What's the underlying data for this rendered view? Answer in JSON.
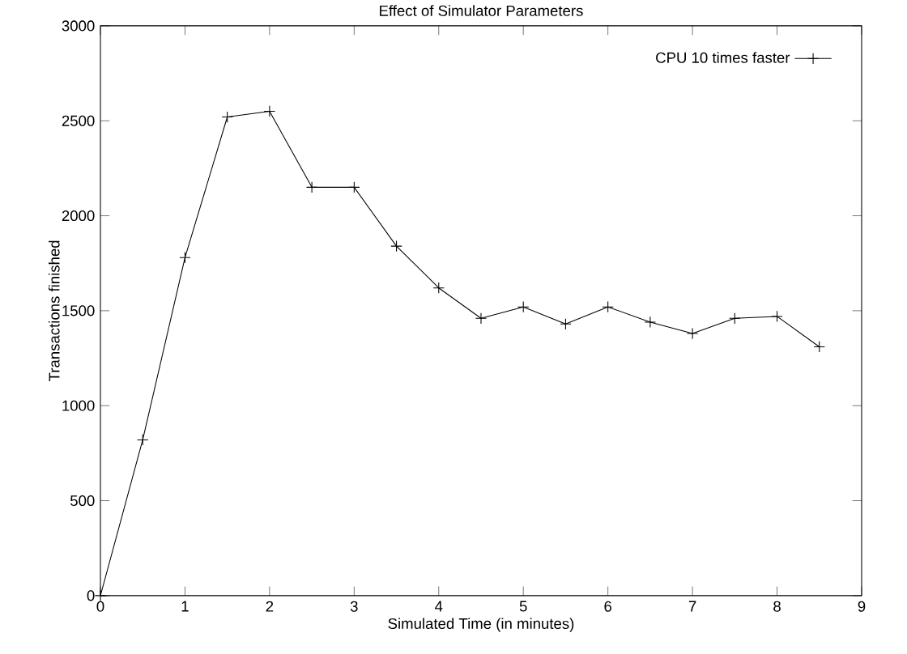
{
  "chart_data": {
    "type": "line",
    "title": "Effect of Simulator Parameters",
    "xlabel": "Simulated Time (in minutes)",
    "ylabel": "Transactions finished",
    "x": [
      0,
      0.5,
      1,
      1.5,
      2,
      2.5,
      3,
      3.5,
      4,
      4.5,
      5,
      5.5,
      6,
      6.5,
      7,
      7.5,
      8,
      8.5
    ],
    "series": [
      {
        "name": "CPU 10 times faster",
        "color": "#000000",
        "values": [
          0,
          820,
          1780,
          2520,
          2550,
          2150,
          2150,
          1840,
          1620,
          1460,
          1520,
          1430,
          1520,
          1440,
          1380,
          1460,
          1470,
          1310
        ]
      }
    ],
    "xlim": [
      0,
      9
    ],
    "ylim": [
      0,
      3000
    ],
    "xticks": [
      0,
      1,
      2,
      3,
      4,
      5,
      6,
      7,
      8,
      9
    ],
    "yticks": [
      0,
      500,
      1000,
      1500,
      2000,
      2500,
      3000
    ],
    "legend": "top right",
    "marker": "cross",
    "line_style": "solid",
    "grid": false
  }
}
